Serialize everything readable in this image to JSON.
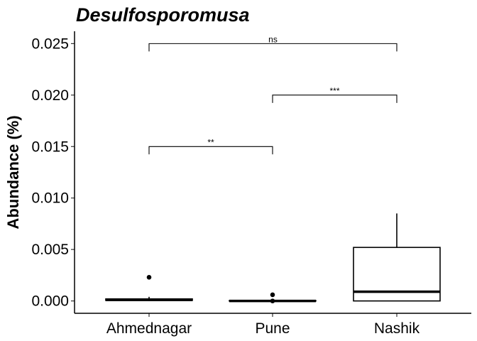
{
  "chart_data": {
    "type": "box",
    "title": "Desulfosporomusa",
    "xlabel": "",
    "ylabel": "Abundance (%)",
    "ylim": [
      -0.0012,
      0.0262
    ],
    "yticks": [
      0.0,
      0.005,
      0.01,
      0.015,
      0.02,
      0.025
    ],
    "ytick_labels": [
      "0.000",
      "0.005",
      "0.010",
      "0.015",
      "0.020",
      "0.025"
    ],
    "categories": [
      "Ahmednagar",
      "Pune",
      "Nashik"
    ],
    "boxes": [
      {
        "category": "Ahmednagar",
        "whisker_low": 0.0,
        "q1": 5e-05,
        "median": 0.0001,
        "q3": 0.0002,
        "whisker_high": 0.0004,
        "outliers": [
          0.0023
        ]
      },
      {
        "category": "Pune",
        "whisker_low": 0.0,
        "q1": 0.0,
        "median": 0.0,
        "q3": 3e-05,
        "whisker_high": 5e-05,
        "outliers": [
          0.0006,
          0.0
        ]
      },
      {
        "category": "Nashik",
        "whisker_low": 0.0,
        "q1": 0.0,
        "median": 0.0009,
        "q3": 0.0052,
        "whisker_high": 0.0085,
        "outliers": []
      }
    ],
    "comparisons": [
      {
        "from": "Ahmednagar",
        "to": "Pune",
        "y": 0.015,
        "label": "**"
      },
      {
        "from": "Pune",
        "to": "Nashik",
        "y": 0.02,
        "label": "***"
      },
      {
        "from": "Ahmednagar",
        "to": "Nashik",
        "y": 0.025,
        "label": "ns"
      }
    ],
    "grid": false,
    "legend": "none"
  }
}
